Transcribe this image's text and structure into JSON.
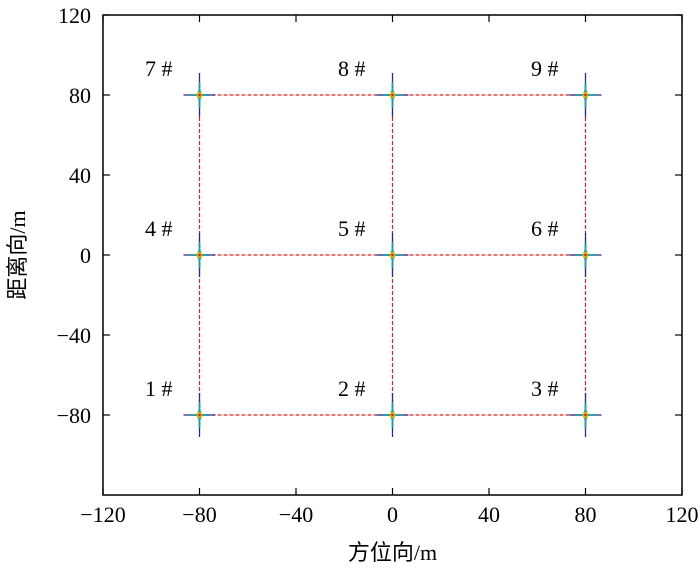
{
  "chart_data": {
    "type": "scatter",
    "title": "",
    "xlabel": "方位向/m",
    "ylabel": "距离向/m",
    "xlim": [
      -120,
      120
    ],
    "ylim": [
      -120,
      120
    ],
    "xticks": [
      -120,
      -80,
      -40,
      0,
      40,
      80,
      120
    ],
    "yticks": [
      -80,
      -40,
      0,
      40,
      80,
      120
    ],
    "xtick_labels": [
      "−120",
      "−80",
      "−40",
      "0",
      "40",
      "80",
      "120"
    ],
    "ytick_labels": [
      "−80",
      "−40",
      "0",
      "40",
      "80",
      "120"
    ],
    "grid": false,
    "grid_line_color": "#d62728",
    "grid_line_style": "dashed",
    "point_colors": [
      "#2b2b8f",
      "#1f9a9a",
      "#e0b800",
      "#d62728"
    ],
    "points": [
      {
        "label": "1 #",
        "x": -80,
        "y": -80
      },
      {
        "label": "2 #",
        "x": 0,
        "y": -80
      },
      {
        "label": "3 #",
        "x": 80,
        "y": -80
      },
      {
        "label": "4 #",
        "x": -80,
        "y": 0
      },
      {
        "label": "5 #",
        "x": 0,
        "y": 0
      },
      {
        "label": "6 #",
        "x": 80,
        "y": 0
      },
      {
        "label": "7 #",
        "x": -80,
        "y": 80
      },
      {
        "label": "8 #",
        "x": 0,
        "y": 80
      },
      {
        "label": "9 #",
        "x": 80,
        "y": 80
      }
    ]
  }
}
